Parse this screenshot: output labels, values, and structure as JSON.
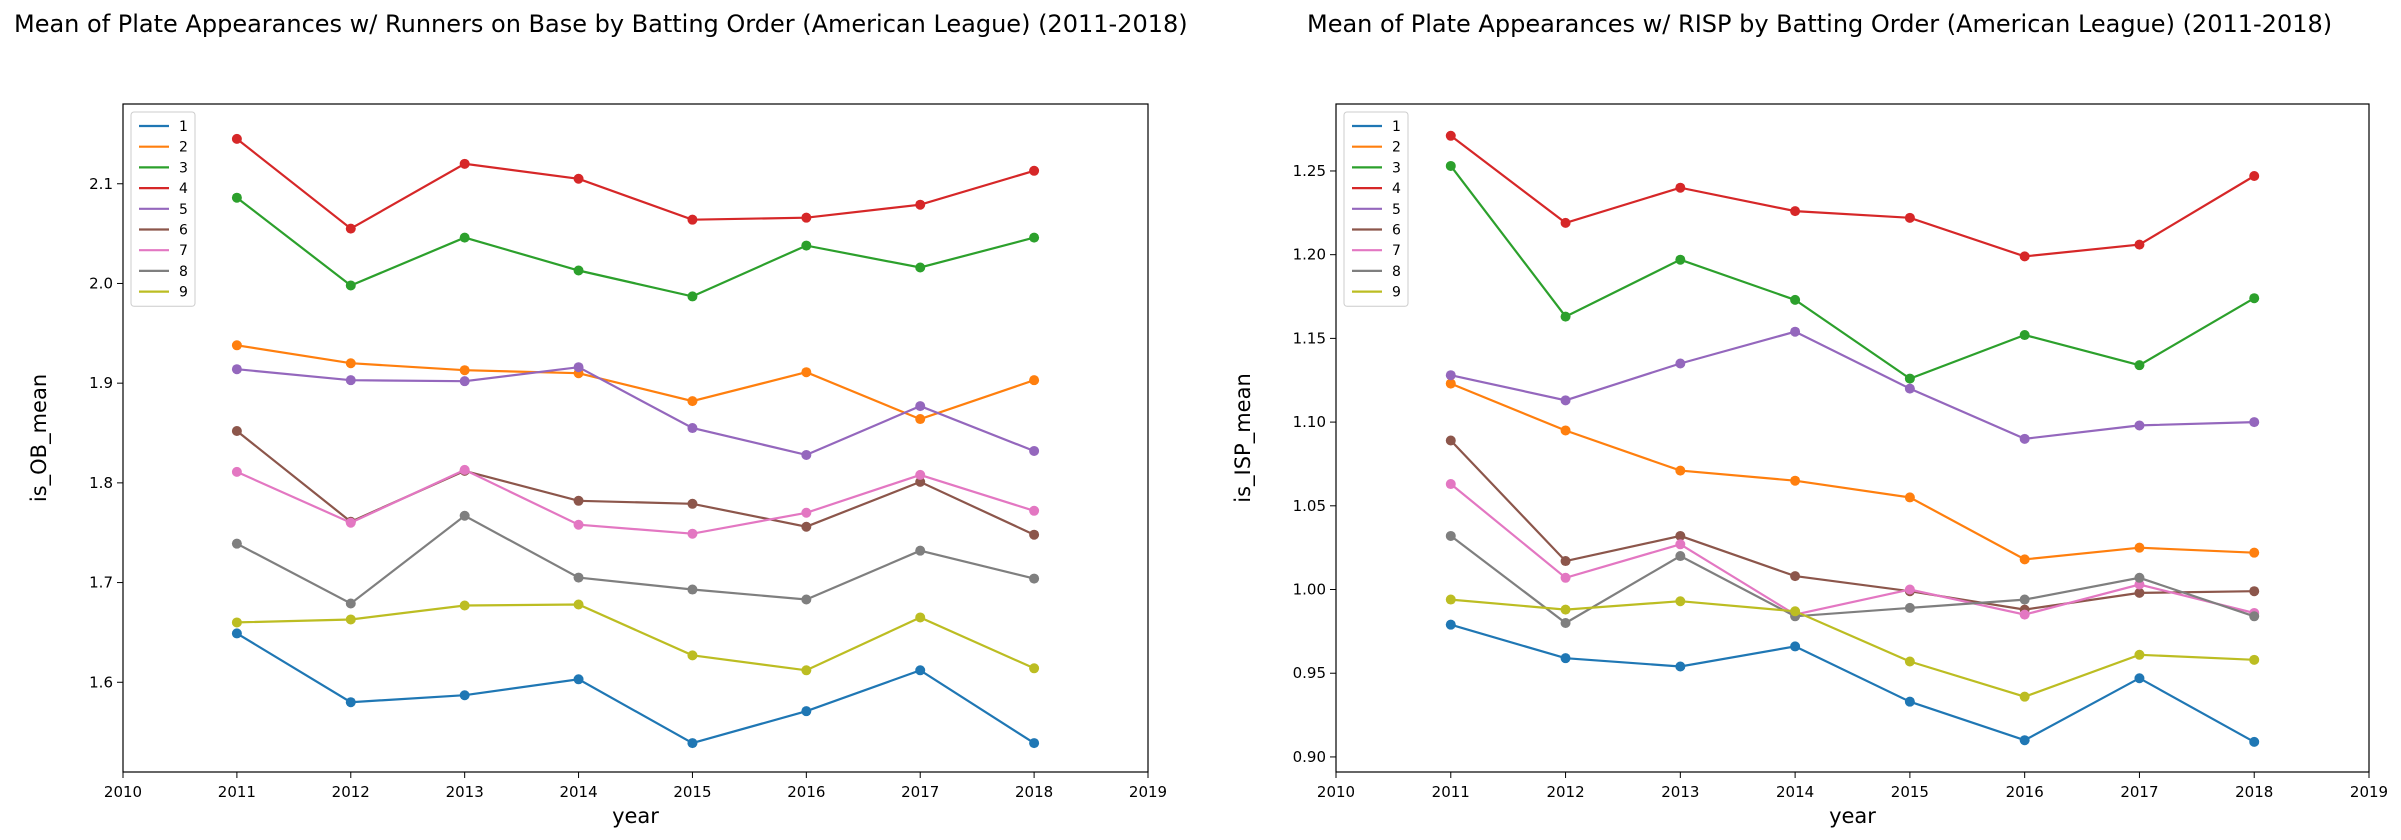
{
  "chart_data": [
    {
      "type": "line",
      "title": "Mean of Plate Appearances w/ Runners on Base by Batting Order (American League) (2011-2018)",
      "xlabel": "year",
      "ylabel": "is_OB_mean",
      "xlim": [
        2010,
        2019
      ],
      "ylim": [
        1.51,
        2.18
      ],
      "xticks": [
        2010,
        2011,
        2012,
        2013,
        2014,
        2015,
        2016,
        2017,
        2018,
        2019
      ],
      "yticks": [
        1.6,
        1.7,
        1.8,
        1.9,
        2.0,
        2.1
      ],
      "ytick_labels": [
        "1.6",
        "1.7",
        "1.8",
        "1.9",
        "2.0",
        "2.1"
      ],
      "legend_position": "upper-left",
      "grid": false,
      "x": [
        2011,
        2012,
        2013,
        2014,
        2015,
        2016,
        2017,
        2018
      ],
      "series": [
        {
          "name": "1",
          "color": "#1f77b4",
          "values": [
            1.649,
            1.58,
            1.587,
            1.603,
            1.539,
            1.571,
            1.612,
            1.539
          ]
        },
        {
          "name": "2",
          "color": "#ff7f0e",
          "values": [
            1.938,
            1.92,
            1.913,
            1.91,
            1.882,
            1.911,
            1.864,
            1.903
          ]
        },
        {
          "name": "3",
          "color": "#2ca02c",
          "values": [
            2.086,
            1.998,
            2.046,
            2.013,
            1.987,
            2.038,
            2.016,
            2.046
          ]
        },
        {
          "name": "4",
          "color": "#d62728",
          "values": [
            2.145,
            2.055,
            2.12,
            2.105,
            2.064,
            2.066,
            2.079,
            2.113
          ]
        },
        {
          "name": "5",
          "color": "#9467bd",
          "values": [
            1.914,
            1.903,
            1.902,
            1.916,
            1.855,
            1.828,
            1.877,
            1.832
          ]
        },
        {
          "name": "6",
          "color": "#8c564b",
          "values": [
            1.852,
            1.761,
            1.812,
            1.782,
            1.779,
            1.756,
            1.801,
            1.748
          ]
        },
        {
          "name": "7",
          "color": "#e377c2",
          "values": [
            1.811,
            1.76,
            1.813,
            1.758,
            1.749,
            1.77,
            1.808,
            1.772
          ]
        },
        {
          "name": "8",
          "color": "#7f7f7f",
          "values": [
            1.739,
            1.679,
            1.767,
            1.705,
            1.693,
            1.683,
            1.732,
            1.704
          ]
        },
        {
          "name": "9",
          "color": "#bcbd22",
          "values": [
            1.66,
            1.663,
            1.677,
            1.678,
            1.627,
            1.612,
            1.665,
            1.614
          ]
        }
      ]
    },
    {
      "type": "line",
      "title": "Mean of Plate Appearances w/ RISP by Batting Order (American League) (2011-2018)",
      "xlabel": "year",
      "ylabel": "is_ISP_mean",
      "xlim": [
        2010,
        2019
      ],
      "ylim": [
        0.891,
        1.29
      ],
      "xticks": [
        2010,
        2011,
        2012,
        2013,
        2014,
        2015,
        2016,
        2017,
        2018,
        2019
      ],
      "yticks": [
        0.9,
        0.95,
        1.0,
        1.05,
        1.1,
        1.15,
        1.2,
        1.25
      ],
      "ytick_labels": [
        "0.90",
        "0.95",
        "1.00",
        "1.05",
        "1.10",
        "1.15",
        "1.20",
        "1.25"
      ],
      "legend_position": "upper-left",
      "grid": false,
      "x": [
        2011,
        2012,
        2013,
        2014,
        2015,
        2016,
        2017,
        2018
      ],
      "series": [
        {
          "name": "1",
          "color": "#1f77b4",
          "values": [
            0.979,
            0.959,
            0.954,
            0.966,
            0.933,
            0.91,
            0.947,
            0.909
          ]
        },
        {
          "name": "2",
          "color": "#ff7f0e",
          "values": [
            1.123,
            1.095,
            1.071,
            1.065,
            1.055,
            1.018,
            1.025,
            1.022
          ]
        },
        {
          "name": "3",
          "color": "#2ca02c",
          "values": [
            1.253,
            1.163,
            1.197,
            1.173,
            1.126,
            1.152,
            1.134,
            1.174
          ]
        },
        {
          "name": "4",
          "color": "#d62728",
          "values": [
            1.271,
            1.219,
            1.24,
            1.226,
            1.222,
            1.199,
            1.206,
            1.247
          ]
        },
        {
          "name": "5",
          "color": "#9467bd",
          "values": [
            1.128,
            1.113,
            1.135,
            1.154,
            1.12,
            1.09,
            1.098,
            1.1
          ]
        },
        {
          "name": "6",
          "color": "#8c564b",
          "values": [
            1.089,
            1.017,
            1.032,
            1.008,
            0.999,
            0.988,
            0.998,
            0.999
          ]
        },
        {
          "name": "7",
          "color": "#e377c2",
          "values": [
            1.063,
            1.007,
            1.027,
            0.985,
            1.0,
            0.985,
            1.003,
            0.986
          ]
        },
        {
          "name": "8",
          "color": "#7f7f7f",
          "values": [
            1.032,
            0.98,
            1.02,
            0.984,
            0.989,
            0.994,
            1.007,
            0.984
          ]
        },
        {
          "name": "9",
          "color": "#bcbd22",
          "values": [
            0.994,
            0.988,
            0.993,
            0.987,
            0.957,
            0.936,
            0.961,
            0.958
          ]
        }
      ]
    }
  ]
}
